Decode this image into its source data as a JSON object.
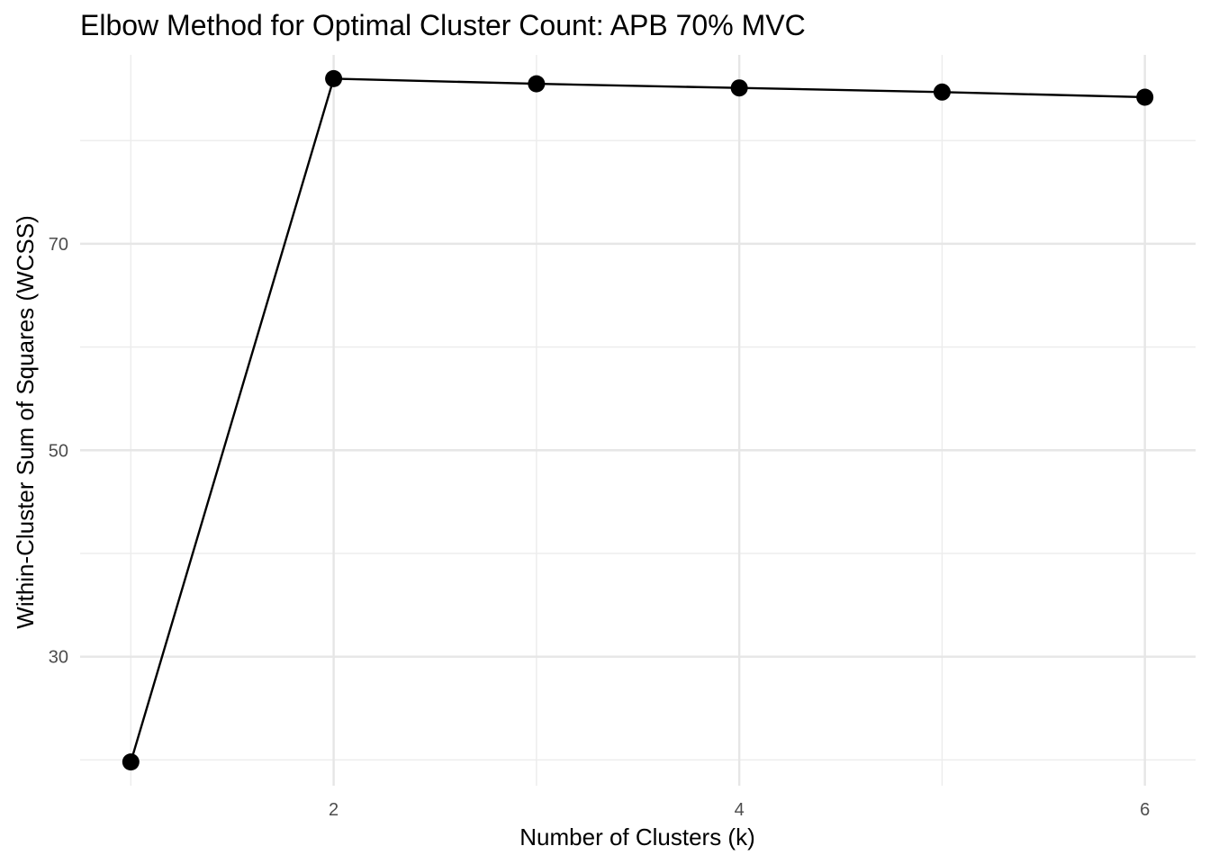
{
  "chart_data": {
    "type": "line",
    "title": "Elbow Method for Optimal Cluster Count: APB 70% MVC",
    "xlabel": "Number of Clusters (k)",
    "ylabel": "Within-Cluster Sum of Squares (WCSS)",
    "x": [
      1,
      2,
      3,
      4,
      5,
      6
    ],
    "series": [
      {
        "values": [
          19.8,
          86.0,
          85.5,
          85.1,
          84.7,
          84.2
        ]
      }
    ],
    "xlim": [
      0.75,
      6.25
    ],
    "ylim": [
      17.5,
      88.3
    ],
    "x_ticks": [
      2,
      4,
      6
    ],
    "x_tick_labels": [
      "2",
      "4",
      "6"
    ],
    "y_ticks": [
      30,
      50,
      70
    ],
    "y_tick_labels": [
      "30",
      "50",
      "70"
    ],
    "x_minor_ticks": [
      1,
      3,
      5
    ],
    "y_minor_ticks": [
      20,
      40,
      60,
      80
    ],
    "grid": true,
    "legend": "none",
    "colors": {
      "line": "#000000",
      "points": "#000000",
      "grid": "#ebebeb",
      "background": "#ffffff"
    }
  }
}
